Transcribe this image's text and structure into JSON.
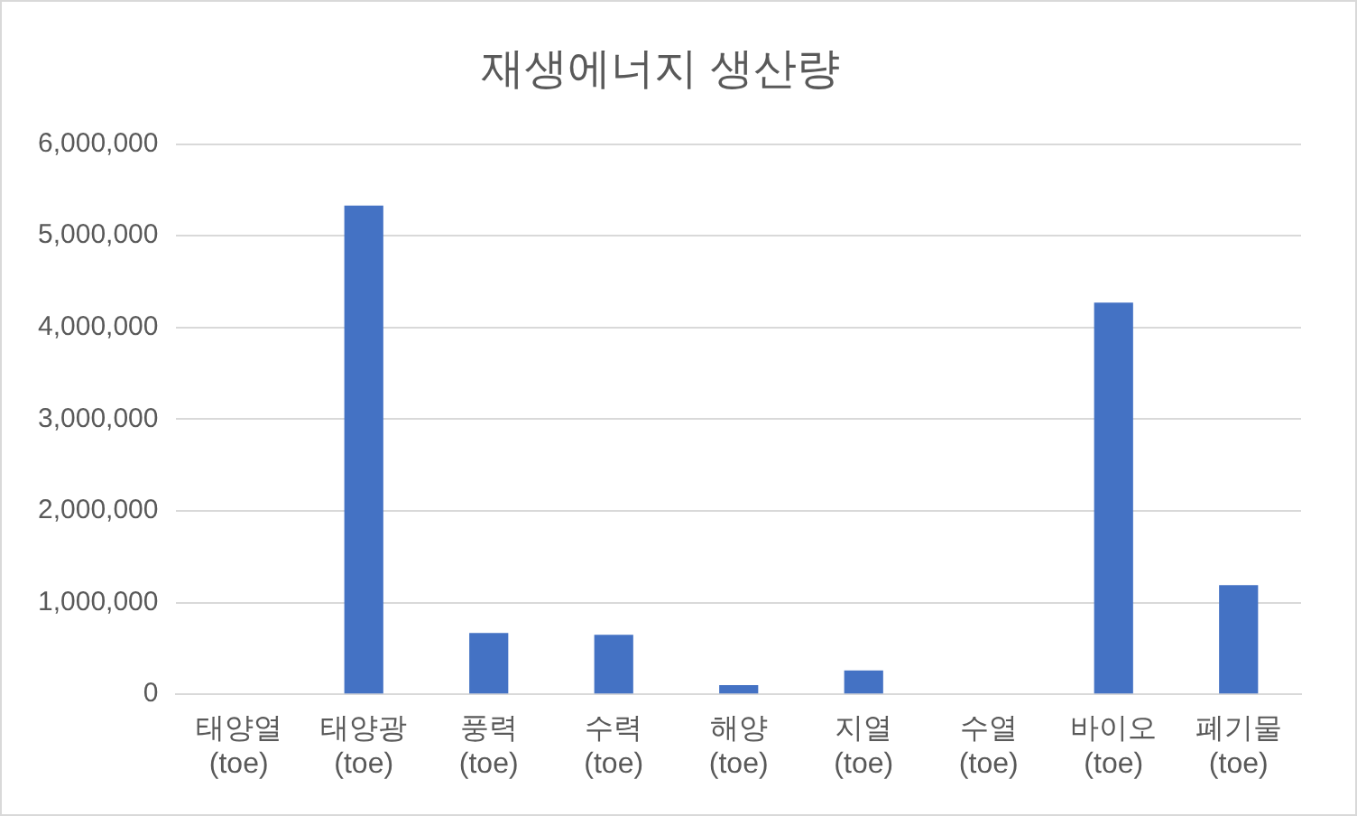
{
  "chart_data": {
    "type": "bar",
    "title": "재생에너지 생산량",
    "categories": [
      "태양열\n(toe)",
      "태양광\n(toe)",
      "풍력\n(toe)",
      "수력\n(toe)",
      "해양\n(toe)",
      "지열\n(toe)",
      "수열\n(toe)",
      "바이오\n(toe)",
      "폐기물\n(toe)"
    ],
    "values": [
      0,
      5330000,
      670000,
      650000,
      100000,
      260000,
      0,
      4270000,
      1190000
    ],
    "color": "#4472c4",
    "ylim": [
      0,
      6000000
    ],
    "yticks": [
      0,
      {
        "value": 1000000,
        "label": "1,000,000"
      },
      {
        "value": 2000000,
        "label": "2,000,000"
      },
      {
        "value": 3000000,
        "label": "3,000,000"
      },
      {
        "value": 4000000,
        "label": "4,000,000"
      },
      {
        "value": 5000000,
        "label": "5,000,000"
      },
      {
        "value": 6000000,
        "label": "6,000,000"
      }
    ],
    "grid": "y"
  }
}
